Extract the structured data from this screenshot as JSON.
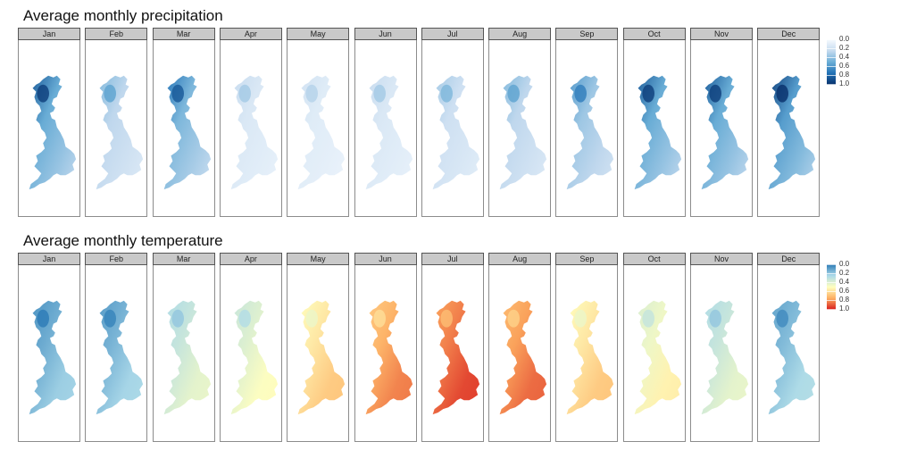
{
  "chart_data": [
    {
      "type": "heatmap",
      "title": "Average monthly precipitation",
      "facets": [
        "Jan",
        "Feb",
        "Mar",
        "Apr",
        "May",
        "Jun",
        "Jul",
        "Aug",
        "Sep",
        "Oct",
        "Nov",
        "Dec"
      ],
      "facet_values": [
        0.85,
        0.45,
        0.75,
        0.25,
        0.2,
        0.25,
        0.35,
        0.45,
        0.6,
        0.85,
        0.85,
        0.95
      ],
      "colorscale": "Blues",
      "colors": [
        "#f7fbff",
        "#c6dbef",
        "#6baed6",
        "#2171b5",
        "#08306b"
      ],
      "legend": {
        "ticks": [
          "0.0",
          "0.2",
          "0.4",
          "0.6",
          "0.8",
          "1.0"
        ],
        "position": "right"
      }
    },
    {
      "type": "heatmap",
      "title": "Average monthly temperature",
      "facets": [
        "Jan",
        "Feb",
        "Mar",
        "Apr",
        "May",
        "Jun",
        "Jul",
        "Aug",
        "Sep",
        "Oct",
        "Nov",
        "Dec"
      ],
      "facet_values": [
        0.18,
        0.2,
        0.38,
        0.45,
        0.62,
        0.78,
        0.88,
        0.82,
        0.62,
        0.5,
        0.38,
        0.22
      ],
      "colorscale": "RdYlBu reversed",
      "colors": [
        "#2c7bb6",
        "#abd9e9",
        "#ffffbf",
        "#fdae61",
        "#d7191c"
      ],
      "legend": {
        "ticks": [
          "0.0",
          "0.2",
          "0.4",
          "0.6",
          "0.8",
          "1.0"
        ],
        "position": "right"
      }
    }
  ]
}
